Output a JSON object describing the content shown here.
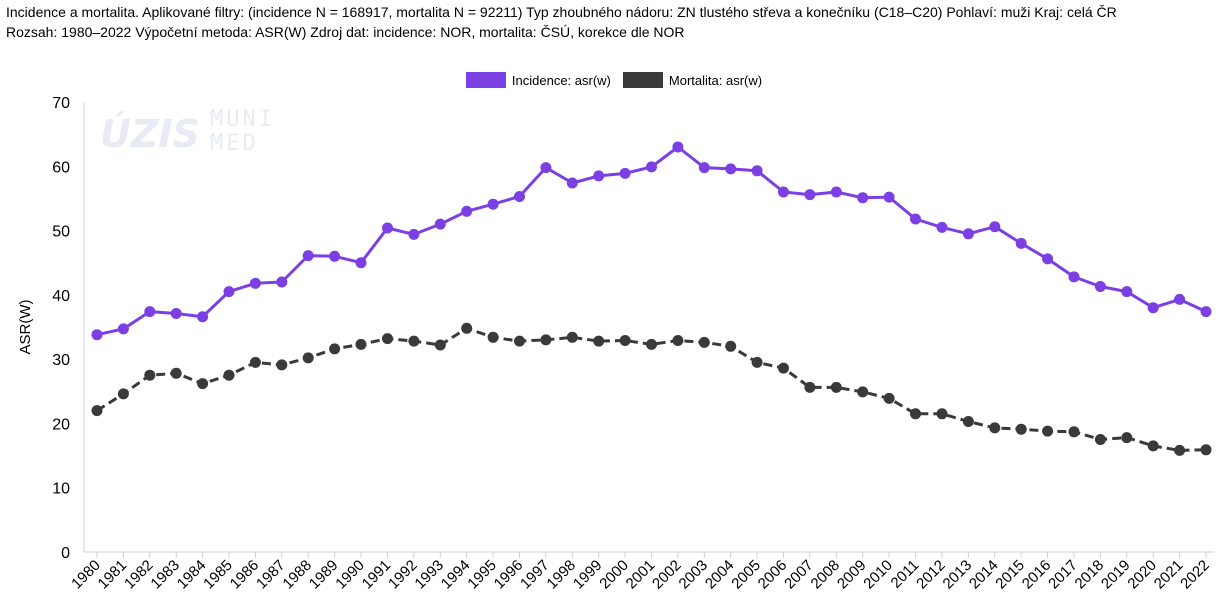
{
  "header": {
    "line1": "Incidence a mortalita. Aplikované filtry: (incidence N = 168917, mortalita N = 92211) Typ zhoubného nádoru: ZN tlustého střeva a konečníku (C18–C20) Pohlaví: muži Kraj: celá ČR",
    "line2": "Rozsah: 1980–2022 Výpočetní metoda: ASR(W) Zdroj dat: incidence: NOR, mortalita: ČSÚ, korekce dle NOR"
  },
  "watermark": {
    "logo1": "ÚZIS",
    "logo2a": "MUNI",
    "logo2b": "MED"
  },
  "chart_data": {
    "type": "line",
    "title": "",
    "xlabel": "",
    "ylabel": "ASR(W)",
    "ylim": [
      0,
      70
    ],
    "yticks": [
      0,
      10,
      20,
      30,
      40,
      50,
      60,
      70
    ],
    "legend_position": "top-center",
    "grid": false,
    "categories": [
      "1980",
      "1981",
      "1982",
      "1983",
      "1984",
      "1985",
      "1986",
      "1987",
      "1988",
      "1989",
      "1990",
      "1991",
      "1992",
      "1993",
      "1994",
      "1995",
      "1996",
      "1997",
      "1998",
      "1999",
      "2000",
      "2001",
      "2002",
      "2003",
      "2004",
      "2005",
      "2006",
      "2007",
      "2008",
      "2009",
      "2010",
      "2011",
      "2012",
      "2013",
      "2014",
      "2015",
      "2016",
      "2017",
      "2018",
      "2019",
      "2020",
      "2021",
      "2022"
    ],
    "series": [
      {
        "name": "Incidence: asr(w)",
        "color": "#7b3fe4",
        "style": "solid",
        "values": [
          33.8,
          34.7,
          37.4,
          37.1,
          36.6,
          40.5,
          41.8,
          42.0,
          46.1,
          46.0,
          45.0,
          50.4,
          49.4,
          51.0,
          53.0,
          54.1,
          55.3,
          59.8,
          57.4,
          58.5,
          58.9,
          59.9,
          63.0,
          59.8,
          59.6,
          59.3,
          56.0,
          55.6,
          56.0,
          55.1,
          55.2,
          51.8,
          50.5,
          49.5,
          50.6,
          48.0,
          45.6,
          42.8,
          41.3,
          40.5,
          38.0,
          39.3,
          37.4
        ]
      },
      {
        "name": "Mortalita: asr(w)",
        "color": "#3a3a3a",
        "style": "dashed",
        "values": [
          22.0,
          24.6,
          27.5,
          27.8,
          26.2,
          27.5,
          29.5,
          29.1,
          30.2,
          31.6,
          32.3,
          33.2,
          32.8,
          32.2,
          34.8,
          33.4,
          32.8,
          33.0,
          33.4,
          32.8,
          32.9,
          32.3,
          32.9,
          32.6,
          32.0,
          29.5,
          28.6,
          25.6,
          25.6,
          24.9,
          23.9,
          21.5,
          21.5,
          20.3,
          19.3,
          19.1,
          18.8,
          18.7,
          17.5,
          17.8,
          16.5,
          15.8,
          15.9
        ]
      }
    ]
  }
}
